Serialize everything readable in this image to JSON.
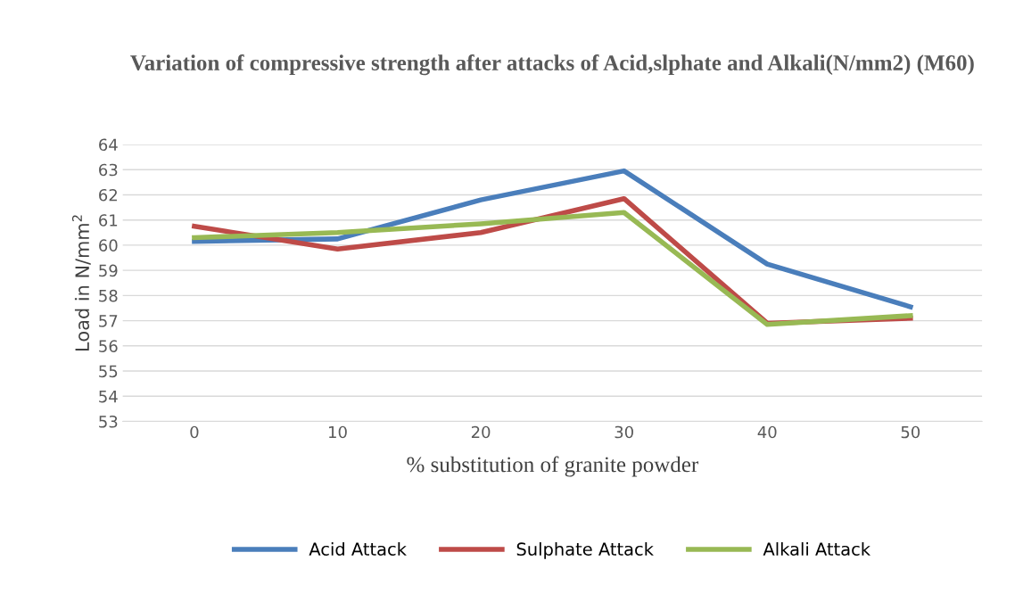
{
  "chart_data": {
    "type": "line",
    "title": "Variation of compressive strength after attacks of Acid,slphate and Alkali(N/mm2) (M60)",
    "xlabel": "% substitution of granite powder",
    "ylabel": "Load in N/mm$^{2}$",
    "categories": [
      "0",
      "10",
      "20",
      "30",
      "40",
      "50"
    ],
    "series": [
      {
        "name": "Acid Attack",
        "color": "#4a7ebb",
        "values": [
          60.15,
          60.25,
          61.8,
          62.95,
          59.25,
          57.55
        ]
      },
      {
        "name": "Sulphate Attack",
        "color": "#be4b48",
        "values": [
          60.75,
          59.85,
          60.5,
          61.85,
          56.9,
          57.1
        ]
      },
      {
        "name": "Alkali Attack",
        "color": "#98b954",
        "values": [
          60.3,
          60.5,
          60.85,
          61.3,
          56.85,
          57.2
        ]
      }
    ],
    "ylim": [
      53,
      64
    ],
    "yticks": [
      53,
      54,
      55,
      56,
      57,
      58,
      59,
      60,
      61,
      62,
      63,
      64
    ],
    "grid": "y",
    "legend": "bottom",
    "marker": "none",
    "line_style": "solid"
  }
}
